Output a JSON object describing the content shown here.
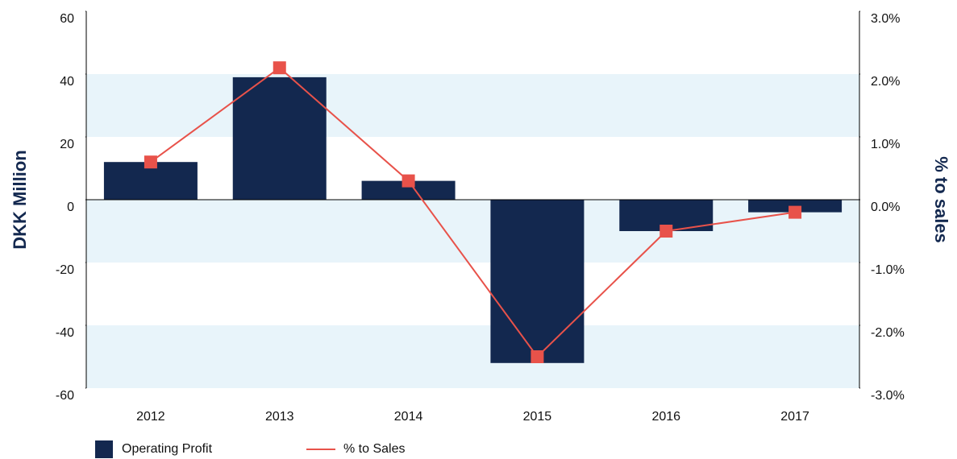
{
  "chart_data": {
    "type": "bar_line",
    "categories": [
      "2012",
      "2013",
      "2014",
      "2015",
      "2016",
      "2017"
    ],
    "series": [
      {
        "name": "Operating Profit",
        "type": "bar",
        "color": "#13284f",
        "values": [
          12,
          39,
          6,
          -52,
          -10,
          -4
        ]
      },
      {
        "name": "% to Sales",
        "type": "line",
        "axis": "y2",
        "color": "#e8524a",
        "values": [
          0.6,
          2.1,
          0.3,
          -2.5,
          -0.5,
          -0.2
        ]
      }
    ],
    "ylabel": "DKK Million",
    "y2label": "% to sales",
    "ylim": [
      -60,
      60
    ],
    "yticks": [
      60,
      40,
      20,
      0,
      -20,
      -40,
      -60
    ],
    "y2lim": [
      -3,
      3
    ],
    "y2ticks": [
      {
        "value": 3,
        "label": "3.0%"
      },
      {
        "value": 2,
        "label": "2.0%"
      },
      {
        "value": 1,
        "label": "1.0%"
      },
      {
        "value": 0,
        "label": "0.0%"
      },
      {
        "value": -1,
        "label": "-1.0%"
      },
      {
        "value": -2,
        "label": "-2.0%"
      },
      {
        "value": -3,
        "label": "-3.0%"
      }
    ],
    "bands": true,
    "band_color": "#e8f4fa",
    "legend": "bottom-left"
  }
}
